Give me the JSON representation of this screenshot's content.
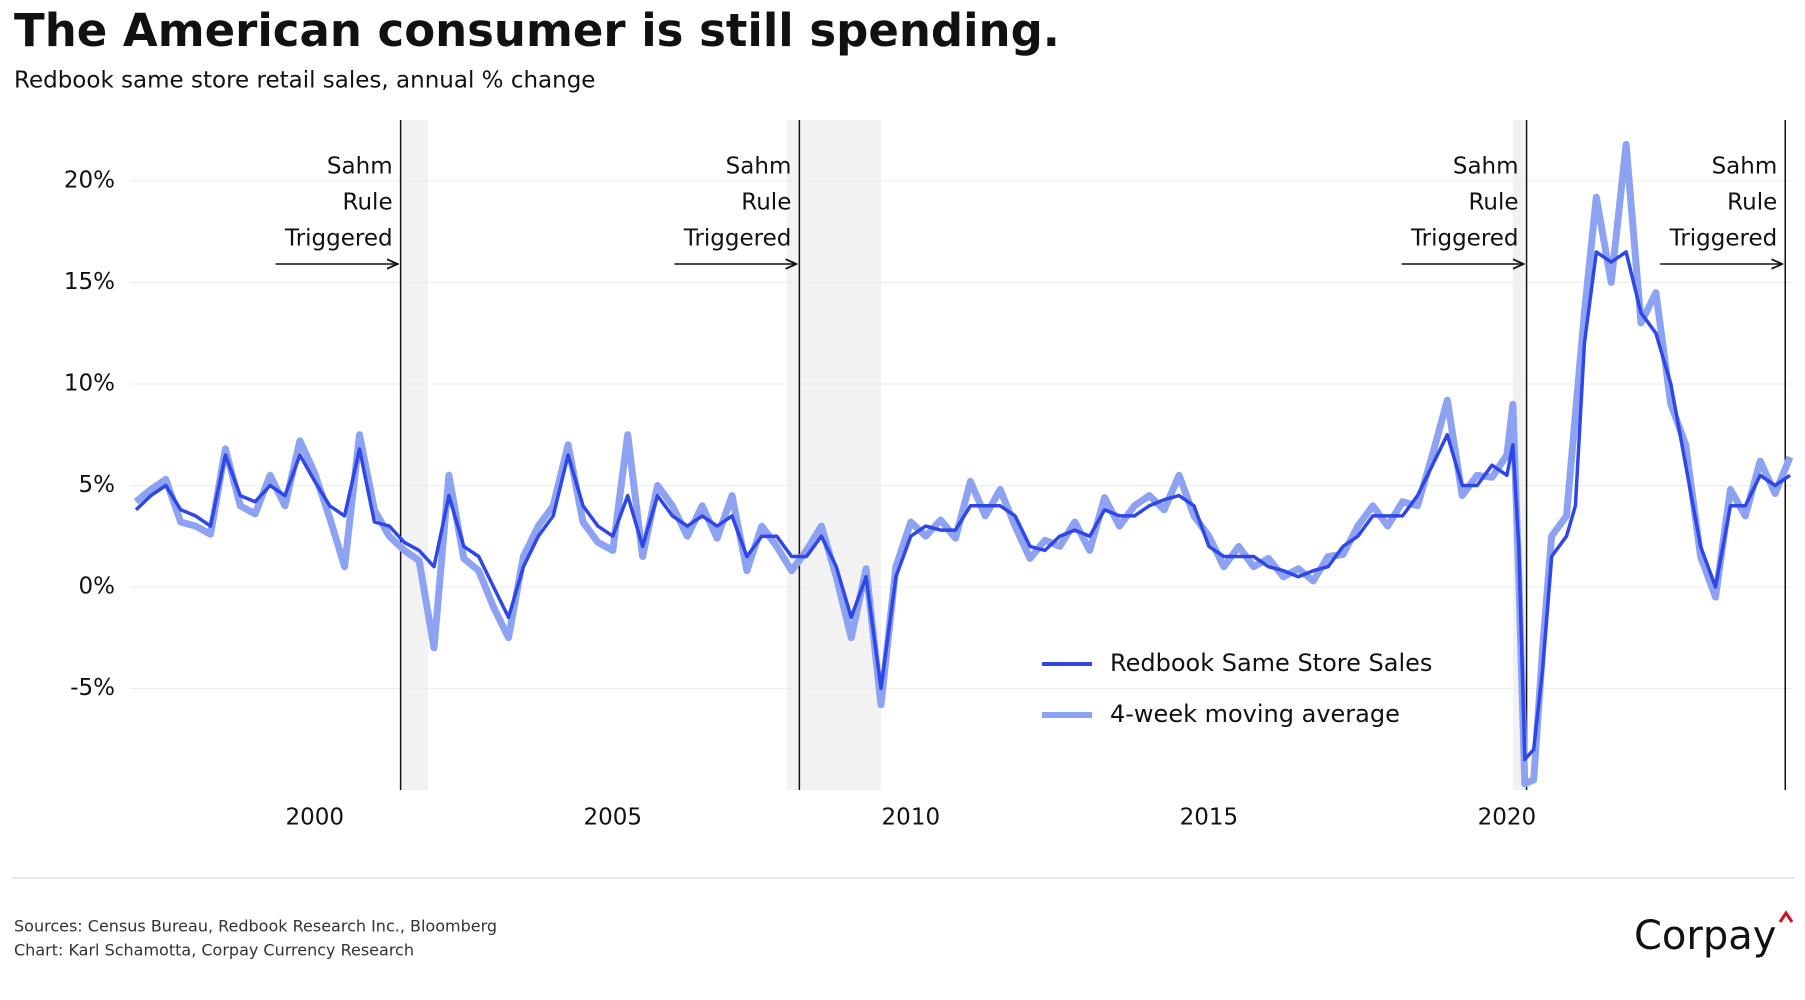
{
  "chart_data": {
    "type": "line",
    "title": "The American consumer is still spending.",
    "subtitle": "Redbook same store retail sales, annual % change",
    "x": [
      1997.0,
      1997.25,
      1997.5,
      1997.75,
      1998.0,
      1998.25,
      1998.5,
      1998.75,
      1999.0,
      1999.25,
      1999.5,
      1999.75,
      2000.0,
      2000.25,
      2000.5,
      2000.75,
      2001.0,
      2001.25,
      2001.5,
      2001.75,
      2002.0,
      2002.25,
      2002.5,
      2002.75,
      2003.0,
      2003.25,
      2003.5,
      2003.75,
      2004.0,
      2004.25,
      2004.5,
      2004.75,
      2005.0,
      2005.25,
      2005.5,
      2005.75,
      2006.0,
      2006.25,
      2006.5,
      2006.75,
      2007.0,
      2007.25,
      2007.5,
      2007.75,
      2008.0,
      2008.25,
      2008.5,
      2008.75,
      2009.0,
      2009.25,
      2009.5,
      2009.75,
      2010.0,
      2010.25,
      2010.5,
      2010.75,
      2011.0,
      2011.25,
      2011.5,
      2011.75,
      2012.0,
      2012.25,
      2012.5,
      2012.75,
      2013.0,
      2013.25,
      2013.5,
      2013.75,
      2014.0,
      2014.25,
      2014.5,
      2014.75,
      2015.0,
      2015.25,
      2015.5,
      2015.75,
      2016.0,
      2016.25,
      2016.5,
      2016.75,
      2017.0,
      2017.25,
      2017.5,
      2017.75,
      2018.0,
      2018.25,
      2018.5,
      2018.75,
      2019.0,
      2019.25,
      2019.5,
      2019.75,
      2020.0,
      2020.1,
      2020.2,
      2020.3,
      2020.45,
      2020.6,
      2020.75,
      2021.0,
      2021.15,
      2021.3,
      2021.5,
      2021.75,
      2022.0,
      2022.25,
      2022.5,
      2022.75,
      2023.0,
      2023.25,
      2023.5,
      2023.75,
      2024.0,
      2024.25,
      2024.5,
      2024.75
    ],
    "series": [
      {
        "name": "4-week moving average",
        "color": "#8ea2f4",
        "width": 7,
        "values": [
          4.2,
          4.8,
          5.3,
          3.2,
          3.0,
          2.6,
          6.8,
          4.0,
          3.6,
          5.5,
          4.0,
          7.2,
          5.6,
          3.4,
          1.0,
          7.5,
          3.8,
          2.5,
          1.8,
          1.3,
          -3.0,
          5.5,
          1.4,
          0.8,
          -1.0,
          -2.5,
          1.5,
          3.0,
          4.0,
          7.0,
          3.2,
          2.2,
          1.8,
          7.5,
          1.5,
          5.0,
          4.0,
          2.5,
          4.0,
          2.4,
          4.5,
          0.8,
          3.0,
          2.0,
          0.8,
          1.8,
          3.0,
          0.5,
          -2.5,
          0.9,
          -5.8,
          1.0,
          3.2,
          2.5,
          3.3,
          2.4,
          5.2,
          3.5,
          4.8,
          3.0,
          1.4,
          2.3,
          2.0,
          3.2,
          1.8,
          4.4,
          3.0,
          4.0,
          4.5,
          3.8,
          5.5,
          3.5,
          2.5,
          1.0,
          2.0,
          1.0,
          1.4,
          0.5,
          0.9,
          0.3,
          1.5,
          1.6,
          3.0,
          4.0,
          3.0,
          4.2,
          4.0,
          6.5,
          9.2,
          4.5,
          5.5,
          5.4,
          6.5,
          9.0,
          0.5,
          -9.7,
          -9.5,
          -3.0,
          2.5,
          3.5,
          8.5,
          13.5,
          19.2,
          15.0,
          21.8,
          13.0,
          14.5,
          9.0,
          7.0,
          1.5,
          -0.5,
          4.8,
          3.5,
          6.2,
          4.6,
          6.4
        ]
      },
      {
        "name": "Redbook Same Store Sales",
        "color": "#2f47e6",
        "width": 3.5,
        "values": [
          3.8,
          4.5,
          5.0,
          3.8,
          3.5,
          3.0,
          6.5,
          4.5,
          4.2,
          5.0,
          4.5,
          6.5,
          5.2,
          4.0,
          3.5,
          6.8,
          3.2,
          3.0,
          2.2,
          1.8,
          1.0,
          4.5,
          2.0,
          1.5,
          0.0,
          -1.5,
          1.0,
          2.5,
          3.5,
          6.5,
          4.0,
          3.0,
          2.5,
          4.5,
          2.0,
          4.5,
          3.5,
          3.0,
          3.5,
          3.0,
          3.5,
          1.5,
          2.5,
          2.5,
          1.5,
          1.5,
          2.5,
          1.0,
          -1.5,
          0.5,
          -5.0,
          0.5,
          2.5,
          3.0,
          2.8,
          2.8,
          4.0,
          4.0,
          4.0,
          3.5,
          2.0,
          1.8,
          2.5,
          2.8,
          2.5,
          3.8,
          3.5,
          3.5,
          4.0,
          4.3,
          4.5,
          4.0,
          2.0,
          1.5,
          1.5,
          1.5,
          1.0,
          0.8,
          0.5,
          0.8,
          1.0,
          2.0,
          2.5,
          3.5,
          3.5,
          3.5,
          4.5,
          6.0,
          7.5,
          5.0,
          5.0,
          6.0,
          5.5,
          7.0,
          2.0,
          -8.5,
          -8.0,
          -4.0,
          1.5,
          2.5,
          4.0,
          12.0,
          16.5,
          16.0,
          16.5,
          13.5,
          12.5,
          10.0,
          6.0,
          2.0,
          0.0,
          4.0,
          4.0,
          5.5,
          5.0,
          5.5
        ]
      }
    ],
    "legend_order": [
      1,
      0
    ],
    "legend": "lower right",
    "xlim": [
      1996.9,
      2024.8
    ],
    "xticks": [
      2000,
      2005,
      2010,
      2015,
      2020
    ],
    "ylim": [
      -10,
      23
    ],
    "yticks": [
      {
        "value": -5,
        "label": "-5%"
      },
      {
        "value": 0,
        "label": "0%"
      },
      {
        "value": 5,
        "label": "5%"
      },
      {
        "value": 10,
        "label": "10%"
      },
      {
        "value": 15,
        "label": "15%"
      },
      {
        "value": 20,
        "label": "20%"
      }
    ],
    "grid": true,
    "recessions": [
      [
        2001.45,
        2001.9
      ],
      [
        2007.92,
        2009.5
      ],
      [
        2020.1,
        2020.3
      ]
    ],
    "annotations": [
      {
        "x": 2001.44,
        "lines": [
          "Sahm",
          "Rule",
          "Triggered"
        ]
      },
      {
        "x": 2008.13,
        "lines": [
          "Sahm",
          "Rule",
          "Triggered"
        ]
      },
      {
        "x": 2020.33,
        "lines": [
          "Sahm",
          "Rule",
          "Triggered"
        ]
      },
      {
        "x": 2024.67,
        "lines": [
          "Sahm",
          "Rule",
          "Triggered"
        ]
      }
    ],
    "sources": [
      "Sources: Census Bureau, Redbook Research Inc., Bloomberg",
      "Chart: Karl Schamotta, Corpay Currency Research"
    ],
    "logo": "Corpay"
  }
}
